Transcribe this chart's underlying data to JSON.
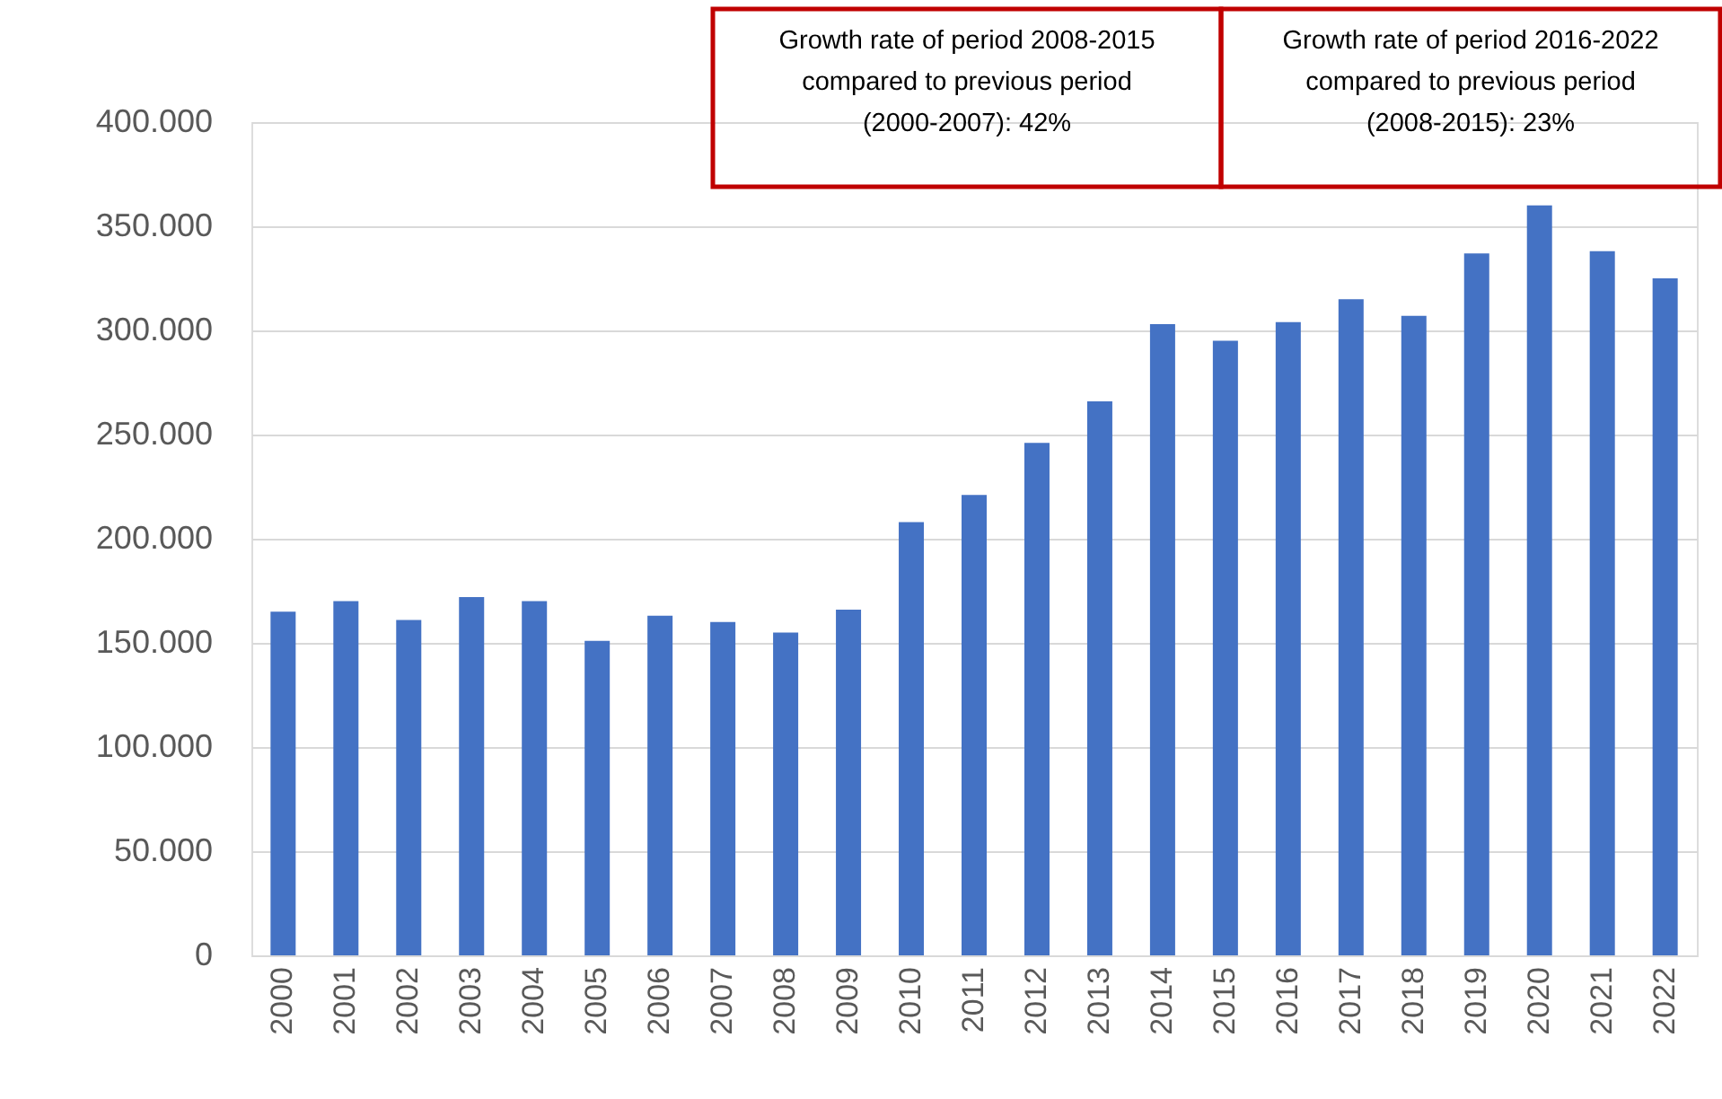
{
  "chart_data": {
    "type": "bar",
    "categories": [
      "2000",
      "2001",
      "2002",
      "2003",
      "2004",
      "2005",
      "2006",
      "2007",
      "2008",
      "2009",
      "2010",
      "2011",
      "2012",
      "2013",
      "2014",
      "2015",
      "2016",
      "2017",
      "2018",
      "2019",
      "2020",
      "2021",
      "2022"
    ],
    "values": [
      165000,
      170000,
      161000,
      172000,
      170000,
      151000,
      163000,
      160000,
      155000,
      166000,
      208000,
      221000,
      246000,
      266000,
      303000,
      295000,
      304000,
      315000,
      307000,
      337000,
      360000,
      338000,
      325000
    ],
    "color": "#4472c4",
    "ylim": [
      0,
      400000
    ],
    "yticks": [
      {
        "value": 0,
        "label": "0"
      },
      {
        "value": 50000,
        "label": "50.000"
      },
      {
        "value": 100000,
        "label": "100.000"
      },
      {
        "value": 150000,
        "label": "150.000"
      },
      {
        "value": 200000,
        "label": "200.000"
      },
      {
        "value": 250000,
        "label": "250.000"
      },
      {
        "value": 300000,
        "label": "300.000"
      },
      {
        "value": 350000,
        "label": "350.000"
      },
      {
        "value": 400000,
        "label": "400.000"
      }
    ],
    "grid": "y",
    "annotations": [
      "Growth rate of period 2008-2015 compared to previous period (2000-2007): 42%",
      "Growth rate of period 2016-2022 compared to previous period (2008-2015): 23%"
    ]
  }
}
